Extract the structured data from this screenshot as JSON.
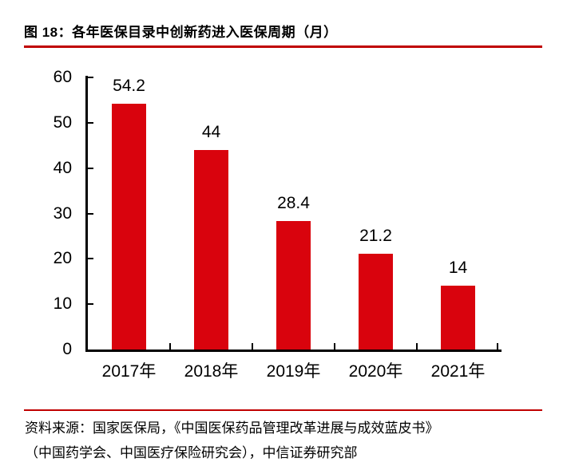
{
  "figure": {
    "title": "图 18：各年医保目录中创新药进入医保周期（月）",
    "source_line1": "资料来源：国家医保局，《中国医保药品管理改革进展与成效蓝皮书》",
    "source_line2": "（中国药学会、中国医疗保险研究会），中信证券研究部"
  },
  "chart_data": {
    "type": "bar",
    "title": "各年医保目录中创新药进入医保周期（月）",
    "categories": [
      "2017年",
      "2018年",
      "2019年",
      "2020年",
      "2021年"
    ],
    "values": [
      54.2,
      44,
      28.4,
      21.2,
      14
    ],
    "value_labels": [
      "54.2",
      "44",
      "28.4",
      "21.2",
      "14"
    ],
    "xlabel": "",
    "ylabel": "",
    "ylim": [
      0,
      60
    ],
    "yticks": [
      0,
      10,
      20,
      30,
      40,
      50,
      60
    ],
    "grid": false,
    "legend": false,
    "bar_color": "#d9030d"
  },
  "colors": {
    "bar": "#d9030d",
    "rule": "#c00000",
    "axis": "#000000",
    "text": "#000000",
    "background": "#ffffff"
  }
}
